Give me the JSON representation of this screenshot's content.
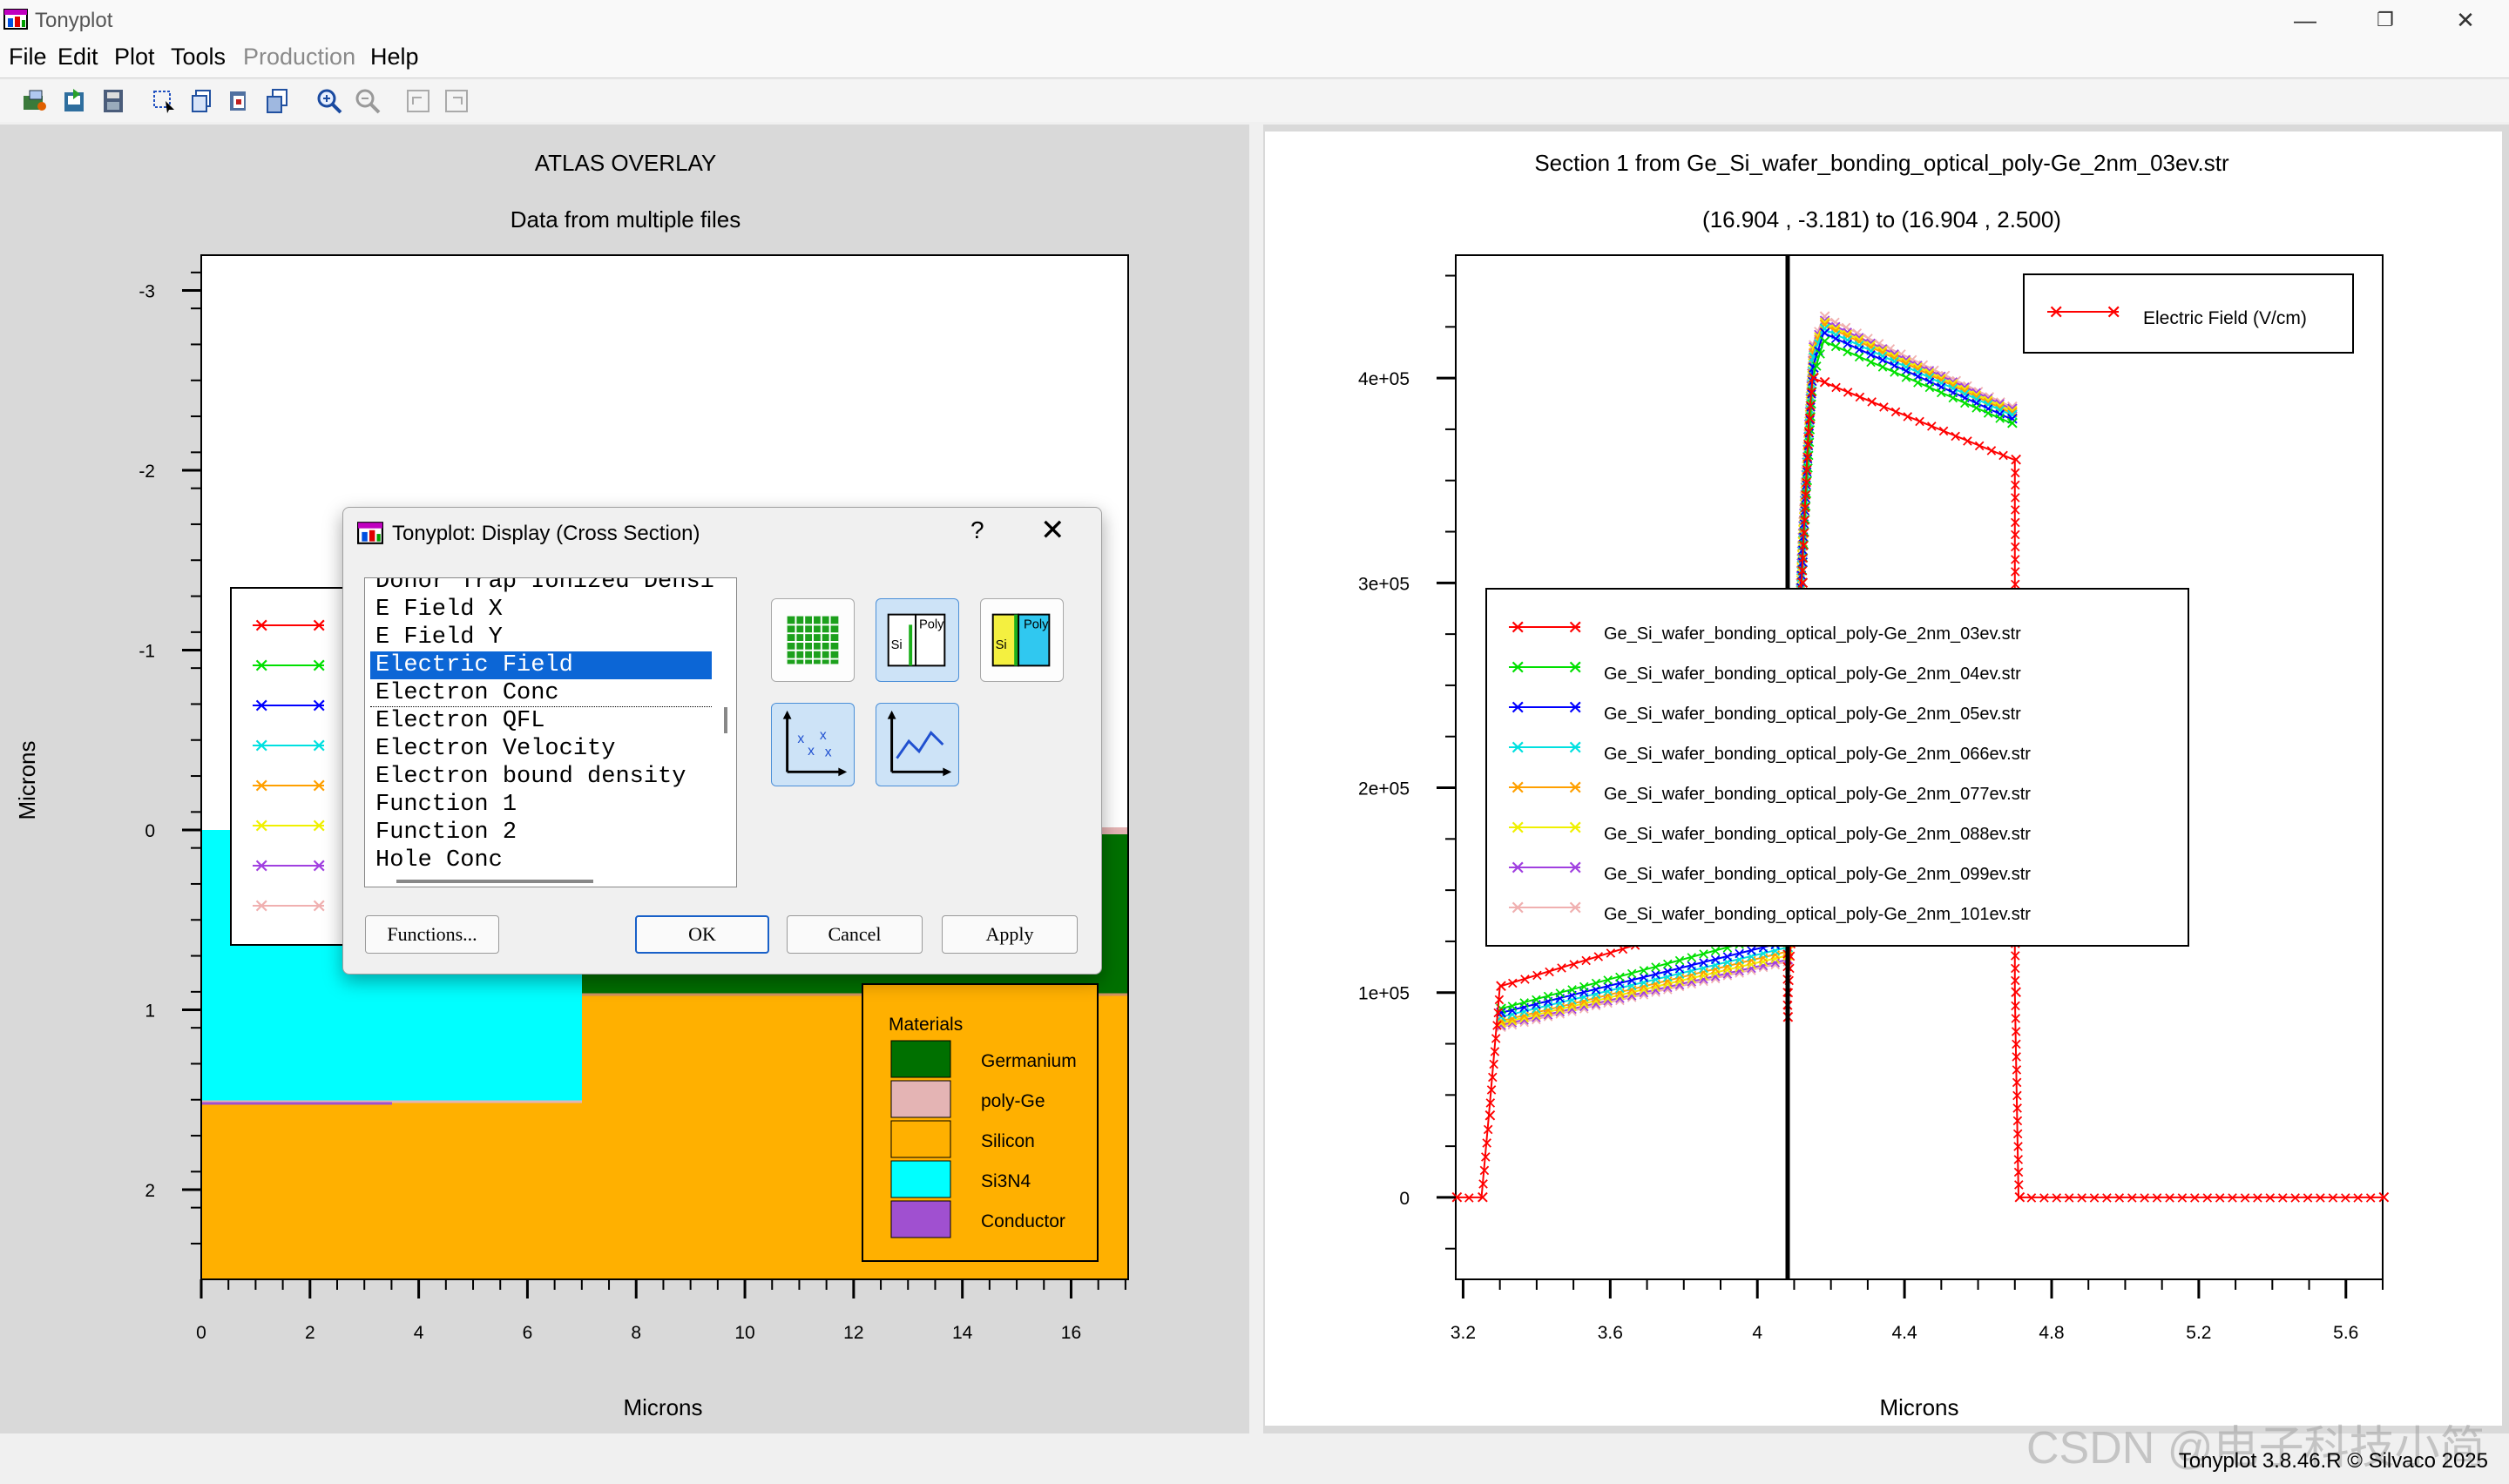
{
  "window": {
    "title": "Tonyplot",
    "minimize": "—",
    "restore": "❐",
    "close": "✕"
  },
  "menu": [
    {
      "label": "File",
      "enabled": true
    },
    {
      "label": "Edit",
      "enabled": true
    },
    {
      "label": "Plot",
      "enabled": true
    },
    {
      "label": "Tools",
      "enabled": true
    },
    {
      "label": "Production",
      "enabled": false
    },
    {
      "label": "Help",
      "enabled": true
    }
  ],
  "toolbar": [
    "open-icon",
    "import-icon",
    "save-icon",
    "select-icon",
    "copy-icon",
    "paste-icon",
    "duplicate-icon",
    "zoom-in-icon",
    "zoom-out-icon",
    "undo-icon",
    "redo-icon"
  ],
  "left_plot": {
    "title": "ATLAS OVERLAY",
    "subtitle": "Data from multiple files",
    "xlabel": "Microns",
    "ylabel": "Microns",
    "xticks": [
      "0",
      "2",
      "4",
      "6",
      "8",
      "10",
      "12",
      "14",
      "16"
    ],
    "yticks": [
      "-3",
      "-2",
      "-1",
      "0",
      "1",
      "2"
    ],
    "legend_title": "Materials",
    "materials": [
      {
        "name": "Germanium",
        "color": "#007000"
      },
      {
        "name": "poly-Ge",
        "color": "#e4b4b4"
      },
      {
        "name": "Silicon",
        "color": "#ffb000"
      },
      {
        "name": "Si3N4",
        "color": "#00ffff"
      },
      {
        "name": "Conductor",
        "color": "#a050d0"
      }
    ]
  },
  "right_plot": {
    "title": "Section 1 from Ge_Si_wafer_bonding_optical_poly-Ge_2nm_03ev.str",
    "subtitle": "(16.904 , -3.181) to (16.904 , 2.500)",
    "xlabel": "Microns",
    "legend_quantity": "Electric Field (V/cm)"
  },
  "series_colors": [
    "#ff0000",
    "#00e000",
    "#0000ff",
    "#00e0e0",
    "#ffa000",
    "#f0f000",
    "#a040e0",
    "#f0b0b0"
  ],
  "chart_data": {
    "type": "scatter",
    "xlabel": "Microns",
    "ylabel": "",
    "xlim": [
      3.18,
      5.7
    ],
    "ylim": [
      -40000,
      460000
    ],
    "xticks": [
      "3.2",
      "3.6",
      "4",
      "4.4",
      "4.8",
      "5.2",
      "5.6"
    ],
    "yticks": [
      "0",
      "1e+05",
      "2e+05",
      "3e+05",
      "4e+05"
    ],
    "series": [
      {
        "name": "Ge_Si_wafer_bonding_optical_poly-Ge_2nm_03ev.str",
        "x": [
          3.18,
          3.25,
          3.27,
          3.3,
          3.7,
          4.08,
          4.08,
          4.1,
          4.12,
          4.14,
          4.15,
          4.18,
          4.7,
          4.7,
          4.71,
          5.7
        ],
        "y": [
          0,
          0,
          40000,
          103000,
          125000,
          150000,
          88000,
          160000,
          300000,
          380000,
          400000,
          398000,
          360000,
          100000,
          0,
          0
        ]
      },
      {
        "name": "Ge_Si_wafer_bonding_optical_poly-Ge_2nm_04ev.str",
        "x": [
          3.3,
          4.08,
          4.12,
          4.15,
          4.18,
          4.69
        ],
        "y": [
          92000,
          130000,
          300000,
          400000,
          418000,
          378000
        ]
      },
      {
        "name": "Ge_Si_wafer_bonding_optical_poly-Ge_2nm_05ev.str",
        "x": [
          3.3,
          4.08,
          4.12,
          4.15,
          4.18,
          4.69
        ],
        "y": [
          90000,
          125000,
          310000,
          405000,
          422000,
          380000
        ]
      },
      {
        "name": "Ge_Si_wafer_bonding_optical_poly-Ge_2nm_066ev.str",
        "x": [
          3.3,
          4.08,
          4.12,
          4.15,
          4.18,
          4.69
        ],
        "y": [
          88000,
          122000,
          315000,
          410000,
          424000,
          382000
        ]
      },
      {
        "name": "Ge_Si_wafer_bonding_optical_poly-Ge_2nm_077ev.str",
        "x": [
          3.3,
          4.08,
          4.12,
          4.15,
          4.18,
          4.69
        ],
        "y": [
          86000,
          120000,
          318000,
          412000,
          426000,
          383000
        ]
      },
      {
        "name": "Ge_Si_wafer_bonding_optical_poly-Ge_2nm_088ev.str",
        "x": [
          3.3,
          4.08,
          4.12,
          4.15,
          4.18,
          4.69
        ],
        "y": [
          85000,
          118000,
          320000,
          414000,
          427000,
          384000
        ]
      },
      {
        "name": "Ge_Si_wafer_bonding_optical_poly-Ge_2nm_099ev.str",
        "x": [
          3.3,
          4.08,
          4.12,
          4.15,
          4.18,
          4.69
        ],
        "y": [
          84000,
          116000,
          322000,
          415000,
          428000,
          385000
        ]
      },
      {
        "name": "Ge_Si_wafer_bonding_optical_poly-Ge_2nm_101ev.str",
        "x": [
          3.3,
          4.08,
          4.12,
          4.15,
          4.18,
          4.69
        ],
        "y": [
          83000,
          115000,
          324000,
          416000,
          430000,
          386000
        ]
      }
    ]
  },
  "dialog": {
    "title": "Tonyplot: Display (Cross Section)",
    "help": "?",
    "close": "✕",
    "list": [
      "Donor Trap Ionized Densi",
      "E Field X",
      "E Field Y",
      "Electric Field",
      "Electron Conc",
      "Electron QFL",
      "Electron Velocity",
      "Electron bound density",
      "Function 1",
      "Function 2",
      "Hole Conc"
    ],
    "selected": "Electric Field",
    "functions_button": "Functions...",
    "ok_button": "OK",
    "cancel_button": "Cancel",
    "apply_button": "Apply"
  },
  "status": {
    "version": "Tonyplot 3.8.46.R © Silvaco 2025"
  },
  "watermark": "CSDN @电子科技小简"
}
